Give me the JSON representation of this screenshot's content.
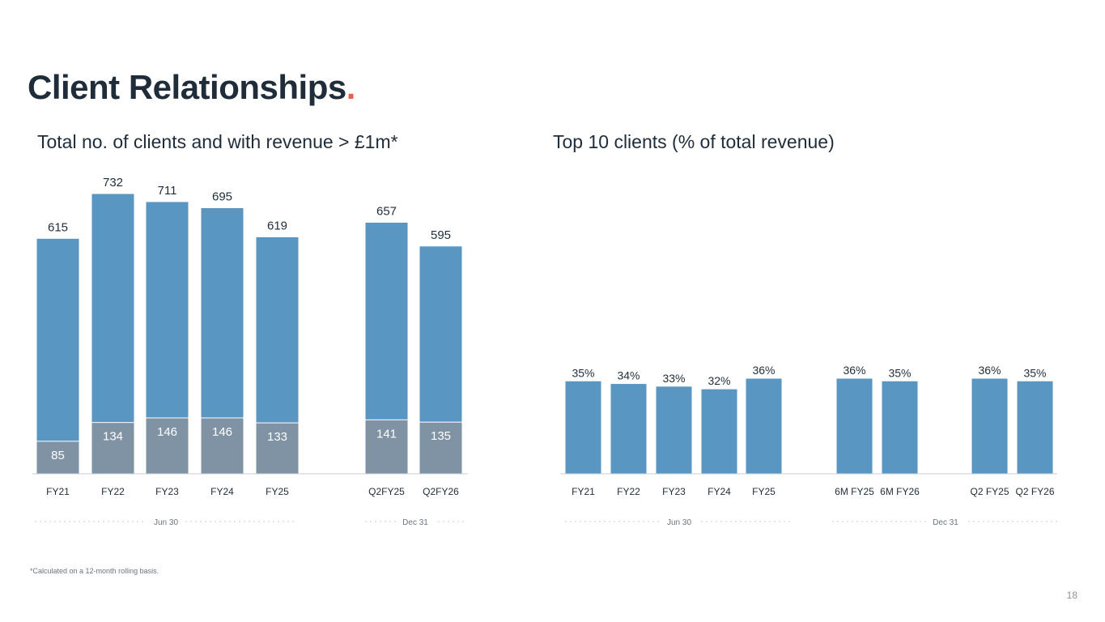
{
  "title": "Client Relationships",
  "title_dot": ".",
  "footnote": "*Calculated on a 12-month rolling basis.",
  "page_number": "18",
  "colors": {
    "bar_blue": "#5997c2",
    "bar_grey": "#7f93a5",
    "accent": "#e8604c",
    "text": "#1f2d3a"
  },
  "chart_data": [
    {
      "type": "bar",
      "title": "Total no. of clients and with revenue > £1m*",
      "categories": [
        "FY21",
        "FY22",
        "FY23",
        "FY24",
        "FY25",
        "Q2FY25",
        "Q2FY26"
      ],
      "series": [
        {
          "values": [
            615,
            732,
            711,
            695,
            619,
            657,
            595
          ]
        },
        {
          "values": [
            85,
            134,
            146,
            146,
            133,
            141,
            135
          ]
        }
      ],
      "group_labels": [
        {
          "label": "Jun 30",
          "categories": [
            "FY21",
            "FY22",
            "FY23",
            "FY24",
            "FY25"
          ]
        },
        {
          "label": "Dec 31",
          "categories": [
            "Q2FY25",
            "Q2FY26"
          ]
        }
      ],
      "ylim": [
        0,
        732
      ],
      "grid": false,
      "legend": "none"
    },
    {
      "type": "bar",
      "title": "Top 10 clients (% of total revenue)",
      "categories": [
        "FY21",
        "FY22",
        "FY23",
        "FY24",
        "FY25",
        "6M FY25",
        "6M FY26",
        "Q2 FY25",
        "Q2 FY26"
      ],
      "series": [
        {
          "values": [
            35,
            34,
            33,
            32,
            36,
            36,
            35,
            36,
            35
          ],
          "labels": [
            "35%",
            "34%",
            "33%",
            "32%",
            "36%",
            "36%",
            "35%",
            "36%",
            "35%"
          ]
        }
      ],
      "group_labels": [
        {
          "label": "Jun 30",
          "categories": [
            "FY21",
            "FY22",
            "FY23",
            "FY24",
            "FY25"
          ]
        },
        {
          "label": "Dec 31",
          "categories": [
            "6M FY25",
            "6M FY26",
            "Q2 FY25",
            "Q2 FY26"
          ]
        }
      ],
      "ylim": [
        0,
        100
      ],
      "grid": false,
      "legend": "none"
    }
  ]
}
